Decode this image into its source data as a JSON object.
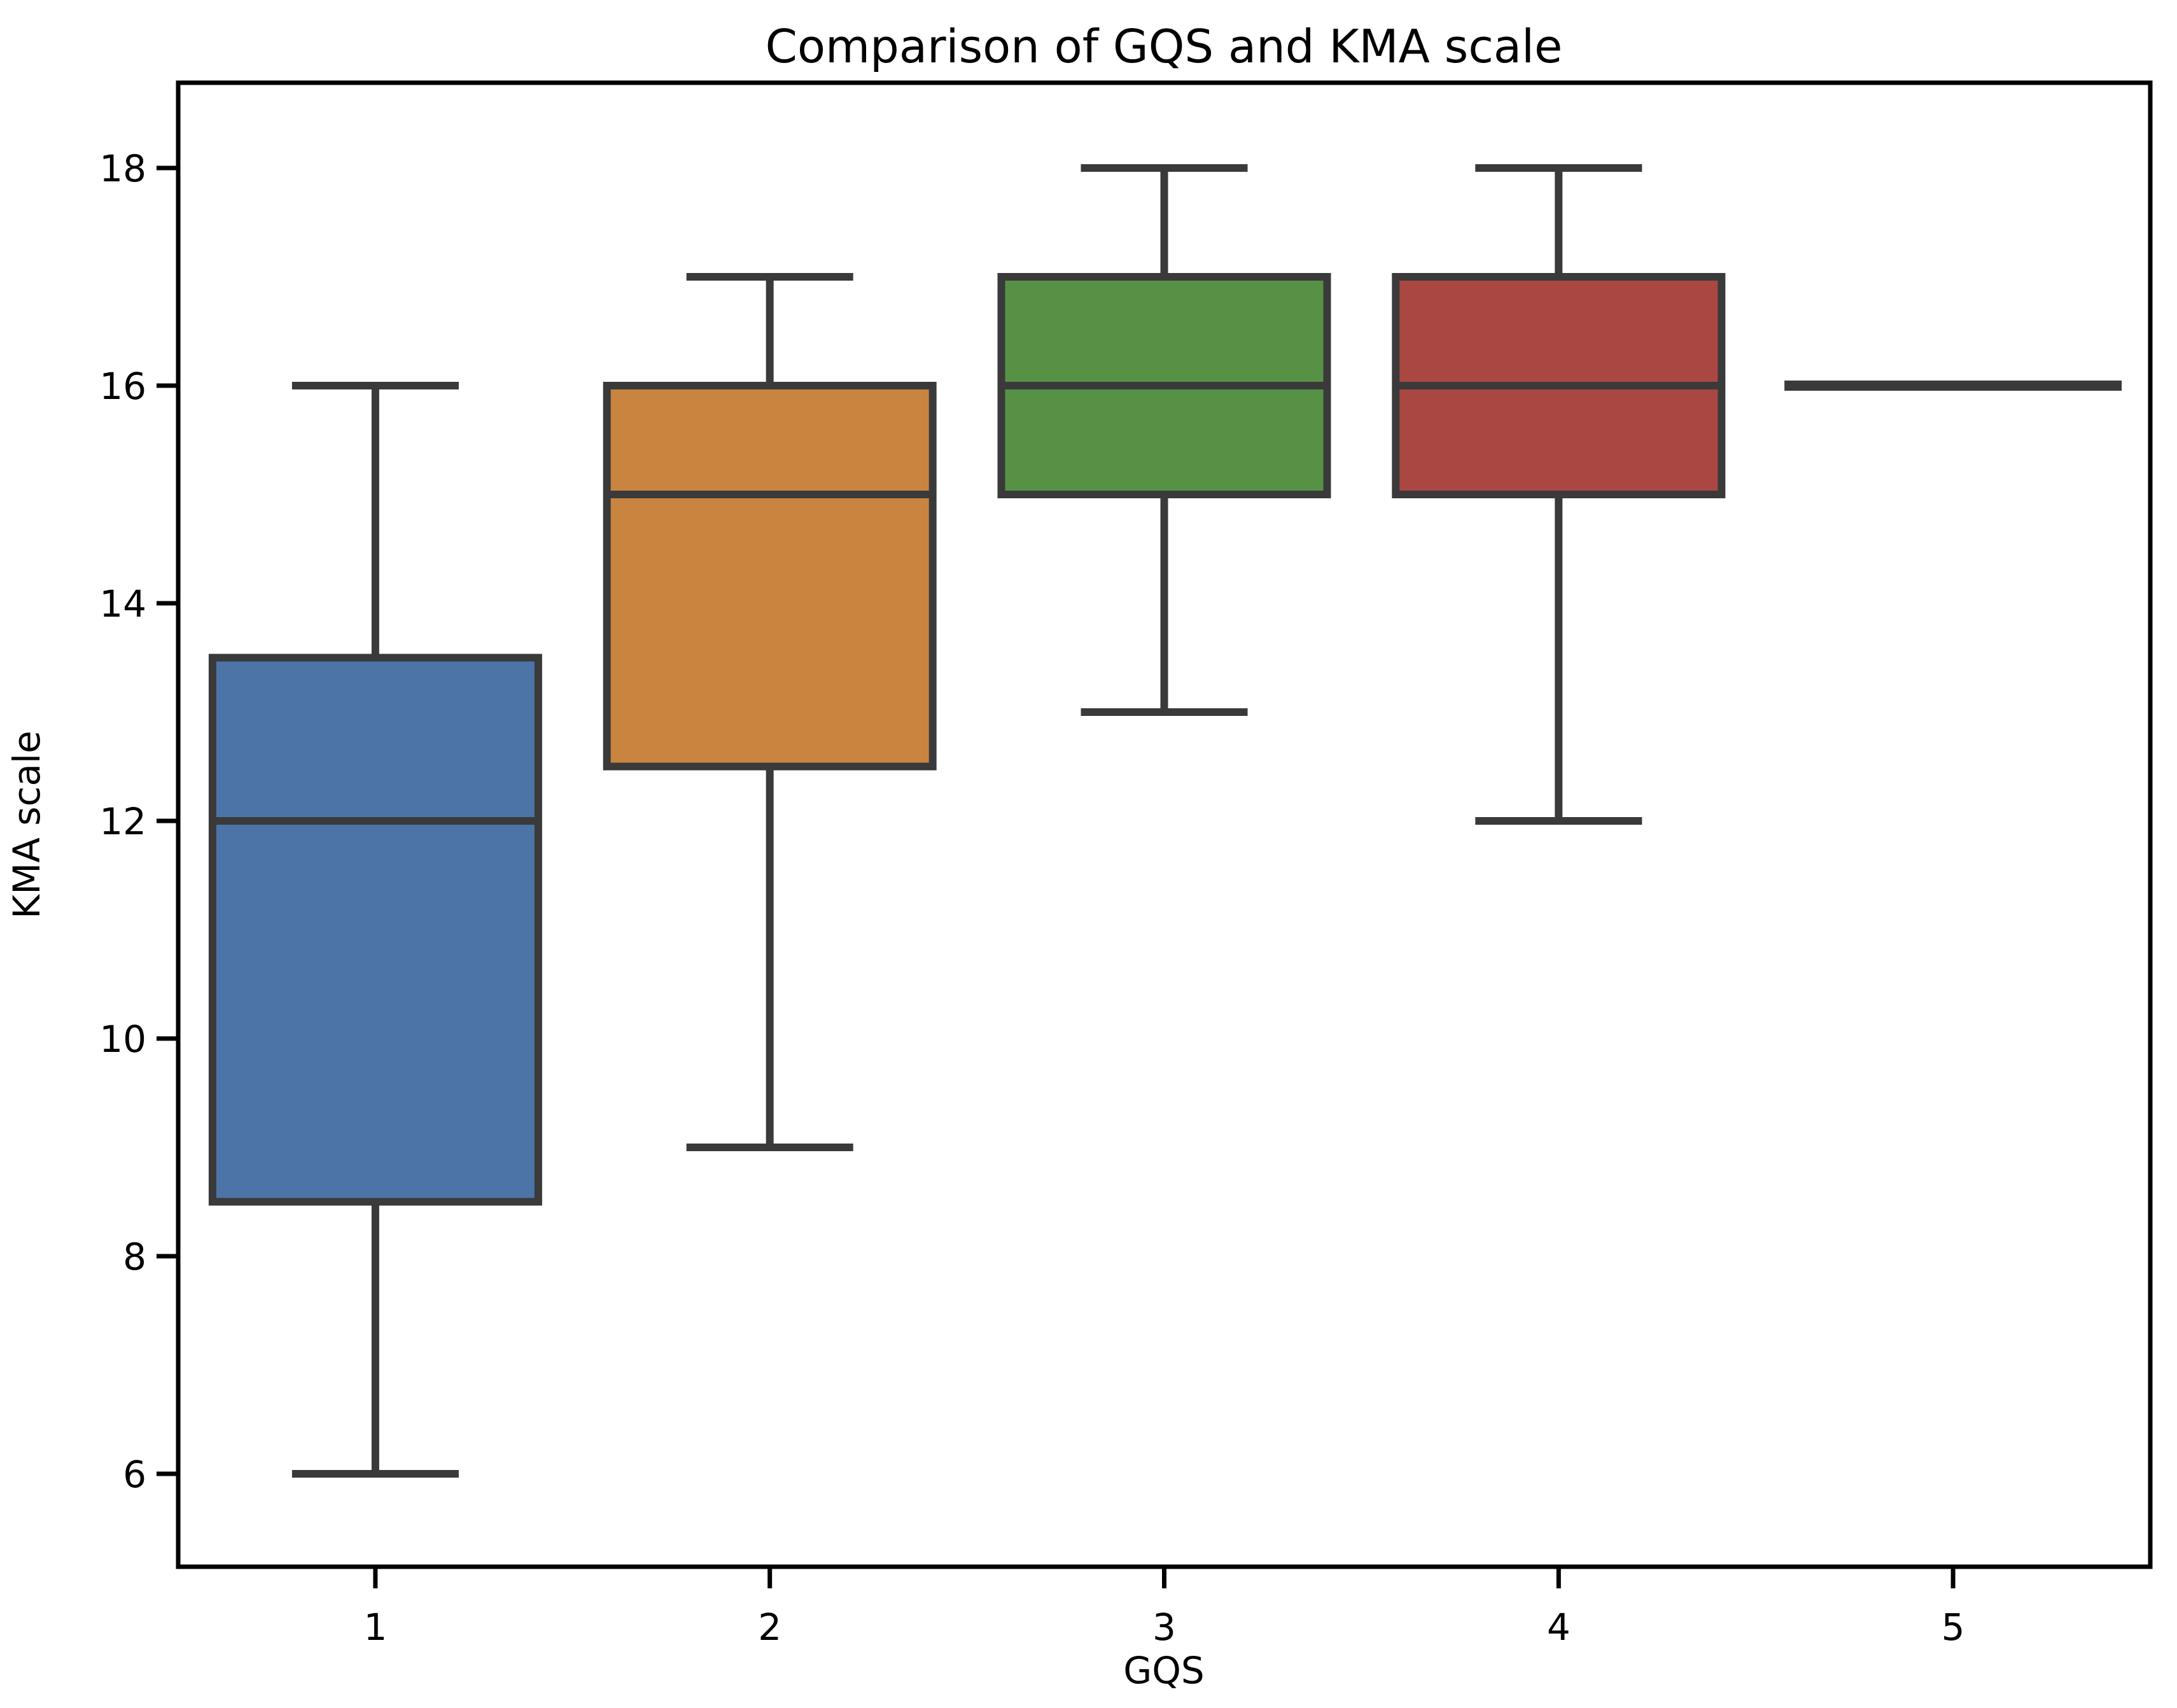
{
  "chart_data": {
    "type": "box",
    "title": "Comparison of GQS and KMA scale",
    "xlabel": "GQS",
    "ylabel": "KMA scale",
    "categories": [
      "1",
      "2",
      "3",
      "4",
      "5"
    ],
    "yticks": [
      18,
      16,
      14,
      12,
      10,
      8,
      6
    ],
    "ylim": [
      5.2,
      18.8
    ],
    "grid": false,
    "legend": false,
    "background_color": "#ffffff",
    "edge_color": "#3a3a3a",
    "spine_color": "#000000",
    "series": [
      {
        "category": "1",
        "min": 6,
        "q1": 8.5,
        "median": 12,
        "q3": 13.5,
        "max": 16,
        "color": "#4d74a7"
      },
      {
        "category": "2",
        "min": 9,
        "q1": 12.5,
        "median": 15,
        "q3": 16,
        "max": 17,
        "color": "#c98540"
      },
      {
        "category": "3",
        "min": 13,
        "q1": 15,
        "median": 16,
        "q3": 17,
        "max": 18,
        "color": "#579146"
      },
      {
        "category": "4",
        "min": 12,
        "q1": 15,
        "median": 16,
        "q3": 17,
        "max": 18,
        "color": "#ab4742"
      },
      {
        "category": "5",
        "min": 16,
        "q1": 16,
        "median": 16,
        "q3": 16,
        "max": 16,
        "color": "#3a3a3a"
      }
    ]
  }
}
